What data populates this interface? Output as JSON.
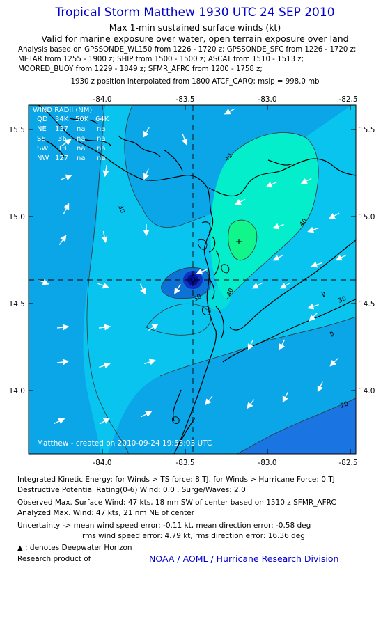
{
  "header": {
    "title": "Tropical Storm Matthew 1930 UTC 24 SEP 2010",
    "subtitle1": "Max 1-min sustained surface winds (kt)",
    "subtitle2": "Valid for marine exposure over water, open terrain exposure over land",
    "analysis_lines": [
      "Analysis based on GPSSONDE_WL150 from 1226 - 1720 z; GPSSONDE_SFC from 1226 - 1720 z;",
      "METAR from 1255 - 1900 z; SHIP from 1500 - 1500 z; ASCAT from 1510 - 1513 z;",
      "MOORED_BUOY from 1229 - 1849 z; SFMR_AFRC from 1200 - 1758 z;"
    ],
    "position_note": "1930 z position interpolated from 1800 ATCF_CARQ; mslp = 998.0 mb"
  },
  "map": {
    "lon_ticks": [
      "-84.0",
      "-83.5",
      "-83.0",
      "-82.5"
    ],
    "lat_ticks": [
      "15.5",
      "15.0",
      "14.5",
      "14.0"
    ],
    "center_lon": -83.5,
    "center_lat": 14.64,
    "max_wind_lon": -83.15,
    "max_wind_lat": 14.86,
    "contour_labels": [
      "30",
      "40",
      "40",
      "30",
      "40",
      "30",
      "20"
    ],
    "wind_radii_table": {
      "header": "WIND RADII (NM)",
      "columns": [
        "QD",
        "34K",
        "50K",
        "64K"
      ],
      "rows": [
        [
          "NE",
          "137",
          "na",
          "na"
        ],
        [
          "SE",
          "36",
          "na",
          "na"
        ],
        [
          "SW",
          "13",
          "na",
          "na"
        ],
        [
          "NW",
          "127",
          "na",
          "na"
        ]
      ]
    },
    "created_label": "Matthew - created on 2010-09-24 19:53:03 UTC",
    "colors": {
      "background": "#0aa6e8",
      "band_20": "#1a74e2",
      "band_30": "#08c4ef",
      "band_40": "#04eecc",
      "band_45": "#12f58a",
      "core": "#1030c0",
      "core_inner": "#001098"
    }
  },
  "footer": {
    "ike": "Integrated Kinetic Energy:  for Winds > TS force: 8 TJ,  for Winds > Hurricane Force: 0 TJ",
    "dpr": "Destructive Potential Rating(0-6)   Wind: 0.0 , Surge/Waves: 2.0",
    "observed_max": "Observed Max. Surface Wind: 47 kts, 18 nm SW of center based on 1510 z SFMR_AFRC",
    "analyzed_max": "Analyzed Max. Wind: 47 kts, 21 nm NE of center",
    "uncertainty1": "Uncertainty -> mean wind speed error:  -0.11 kt,   mean direction error:  -0.58 deg",
    "uncertainty2": "rms wind speed error: 4.79 kt,   rms direction error: 16.36 deg",
    "deepwater_note": ": denotes Deepwater Horizon",
    "research_label": "Research product of",
    "credit": "NOAA / AOML / Hurricane Research Division"
  }
}
